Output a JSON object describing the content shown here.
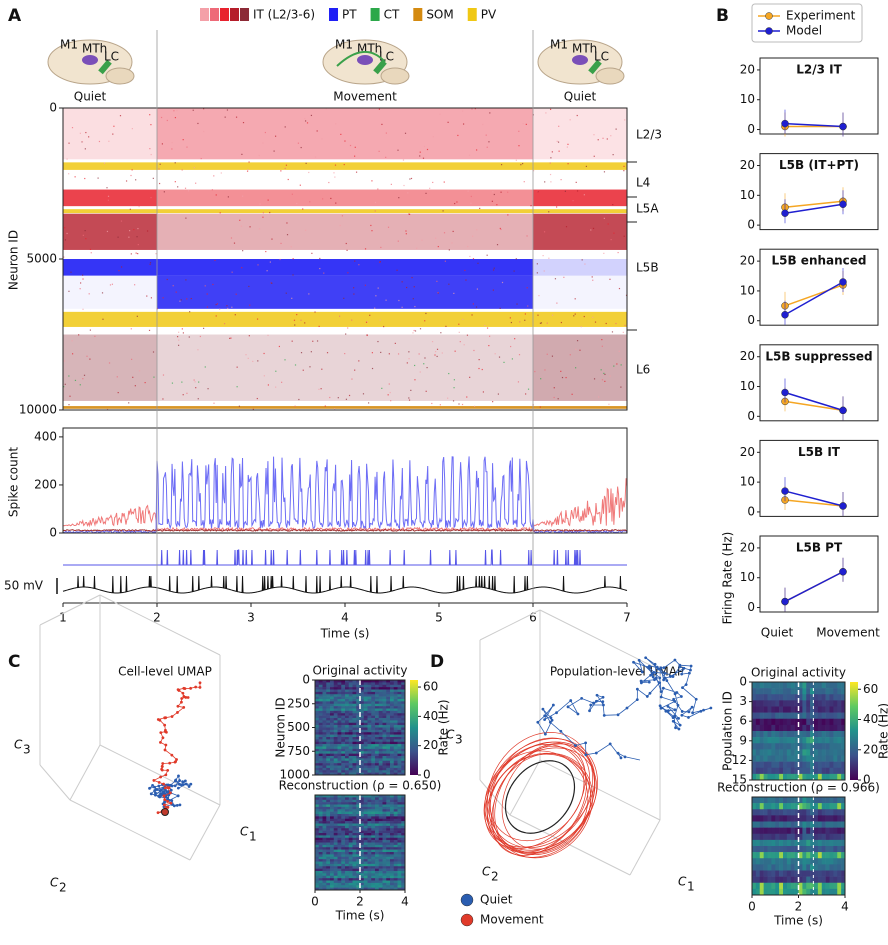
{
  "panel_a": {
    "label": "A",
    "legend": [
      {
        "name": "IT (L2/3-6)",
        "colors": [
          "#f4a0a8",
          "#ee6a78",
          "#e8222e",
          "#b51d2a",
          "#8c2a36"
        ]
      },
      {
        "name": "PT",
        "colors": [
          "#1f1ff5"
        ]
      },
      {
        "name": "CT",
        "colors": [
          "#2ca84a"
        ]
      },
      {
        "name": "SOM",
        "colors": [
          "#d48a10"
        ]
      },
      {
        "name": "PV",
        "colors": [
          "#f0c814"
        ]
      }
    ],
    "brain_labels": [
      "M1",
      "MTh",
      "LC"
    ],
    "states": [
      "Quiet",
      "Movement",
      "Quiet"
    ],
    "raster": {
      "ylabel": "Neuron ID",
      "ylim": [
        0,
        10000
      ],
      "yticks": [
        0,
        5000,
        10000
      ],
      "layers": [
        "L2/3",
        "L4",
        "L5A",
        "L5B",
        "L6"
      ]
    },
    "spikes": {
      "ylabel": "Spike count",
      "ylim": [
        0,
        437
      ],
      "yticks": [
        0,
        200,
        400
      ]
    },
    "vm_label": "50 mV",
    "xlabel": "Time (s)",
    "xlim": [
      1,
      7
    ],
    "xticks": [
      1,
      2,
      3,
      4,
      5,
      6,
      7
    ]
  },
  "panel_b": {
    "label": "B",
    "legend": [
      {
        "name": "Experiment",
        "color": "#f5a623"
      },
      {
        "name": "Model",
        "color": "#1f1fd0"
      }
    ],
    "ylabel": "Firing Rate (Hz)",
    "categories": [
      "Quiet",
      "Movement"
    ],
    "ylim": [
      -1.5,
      24
    ],
    "yticks": [
      0,
      10,
      20
    ],
    "charts": [
      {
        "title": "L2/3 IT",
        "experiment": [
          1,
          1
        ],
        "model": [
          2,
          1
        ]
      },
      {
        "title": "L5B (IT+PT)",
        "experiment": [
          6,
          8
        ],
        "model": [
          4,
          7
        ]
      },
      {
        "title": "L5B enhanced",
        "experiment": [
          5,
          12
        ],
        "model": [
          2,
          13
        ]
      },
      {
        "title": "L5B suppressed",
        "experiment": [
          5,
          2
        ],
        "model": [
          8,
          2
        ]
      },
      {
        "title": "L5B IT",
        "experiment": [
          4,
          2
        ],
        "model": [
          7,
          2
        ]
      },
      {
        "title": "L5B PT",
        "experiment": [
          2,
          12
        ],
        "model": [
          2,
          12
        ]
      }
    ]
  },
  "panel_c": {
    "label": "C",
    "title": "Cell-level UMAP",
    "axes": [
      "C",
      "1",
      "2",
      "3"
    ],
    "original_title": "Original activity",
    "recon_title": "Reconstruction (ρ = 0.650)",
    "ylabel": "Neuron ID",
    "yticks": [
      0,
      250,
      500,
      750,
      1000
    ],
    "colorbar_label": "Rate (Hz)",
    "cticks": [
      0,
      20,
      40,
      60
    ],
    "xlabel": "Time (s)",
    "xticks": [
      0,
      2,
      4
    ]
  },
  "panel_d": {
    "label": "D",
    "title": "Population-level UMAP",
    "axes": [
      "C",
      "1",
      "2",
      "3"
    ],
    "original_title": "Original activity",
    "recon_title": "Reconstruction (ρ = 0.966)",
    "ylabel": "Population ID",
    "yticks": [
      0,
      3,
      6,
      9,
      12,
      15
    ],
    "colorbar_label": "Rate (Hz)",
    "cticks": [
      0,
      20,
      40,
      60
    ],
    "xlabel": "Time (s)",
    "xticks": [
      0,
      2,
      4
    ],
    "legend": [
      {
        "name": "Quiet",
        "color": "#2a5db0"
      },
      {
        "name": "Movement",
        "color": "#e03a2a"
      }
    ]
  }
}
